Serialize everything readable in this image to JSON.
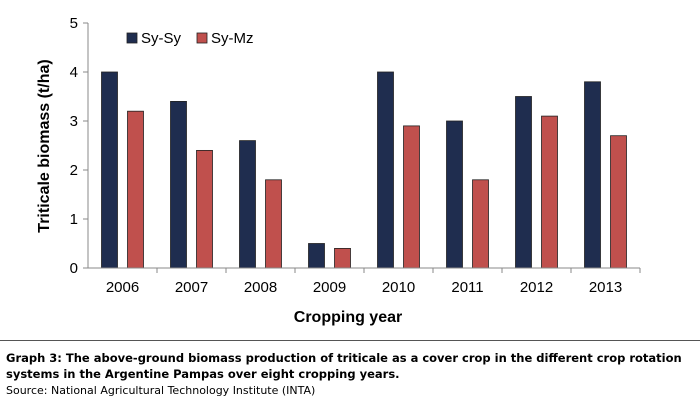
{
  "chart_data": {
    "type": "bar",
    "categories": [
      "2006",
      "2007",
      "2008",
      "2009",
      "2010",
      "2011",
      "2012",
      "2013"
    ],
    "series": [
      {
        "name": "Sy-Sy",
        "color": "#1f2d4f",
        "values": [
          4.0,
          3.4,
          2.6,
          0.5,
          4.0,
          3.0,
          3.5,
          3.8
        ]
      },
      {
        "name": "Sy-Mz",
        "color": "#c0504d",
        "values": [
          3.2,
          2.4,
          1.8,
          0.4,
          2.9,
          1.8,
          3.1,
          2.7
        ]
      }
    ],
    "xlabel": "Cropping year",
    "ylabel": "Triticale biomass (t/ha)",
    "ylim": [
      0,
      5
    ],
    "yticks": [
      "0",
      "1",
      "2",
      "3",
      "4",
      "5"
    ],
    "grid": false,
    "legend": "top-left"
  },
  "caption": {
    "title": "Graph 3: The above-ground biomass production of triticale as a cover crop in the different crop rotation systems in the Argentine Pampas over eight cropping years.",
    "source": "Source: National Agricultural Technology Institute (INTA)"
  }
}
